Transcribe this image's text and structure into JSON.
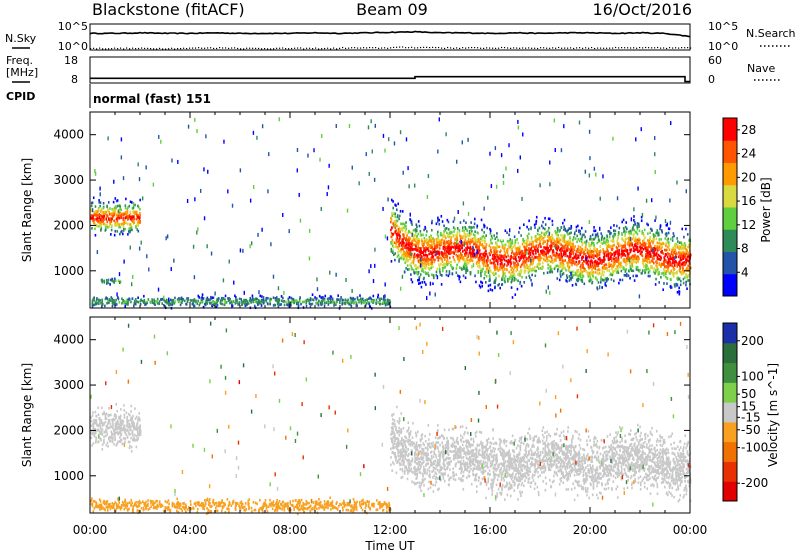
{
  "header": {
    "station": "Blackstone (fitACF)",
    "beam": "Beam 09",
    "date": "16/Oct/2016"
  },
  "noise_panel": {
    "left_label": "N.Sky",
    "right_label": "N.Search",
    "left_ticks": [
      "10^5",
      "10^0"
    ],
    "right_ticks": [
      "10^5",
      "10^0"
    ]
  },
  "freq_panel": {
    "left_label_1": "Freq.",
    "left_label_2": "[MHz]",
    "right_label": "Nave",
    "left_ticks": [
      "18",
      "8"
    ],
    "right_ticks": [
      "60",
      "0"
    ]
  },
  "cpid_panel": {
    "label": "CPID",
    "text": "normal (fast) 151"
  },
  "x_axis": {
    "label": "Time UT",
    "ticks": [
      "00:00",
      "04:00",
      "08:00",
      "12:00",
      "16:00",
      "20:00",
      "00:00"
    ]
  },
  "colors": {
    "power_scale": [
      "#0000ff",
      "#2255aa",
      "#2e8b57",
      "#5fcf3f",
      "#d9d940",
      "#ff9a00",
      "#ff5500",
      "#ff0000"
    ],
    "velocity_scale": [
      "#1c2fa8",
      "#2a6e3a",
      "#3e8f3e",
      "#7ed04a",
      "#c8c8c8",
      "#f8a020",
      "#f07000",
      "#e83000",
      "#e00000"
    ]
  },
  "chart_data": [
    {
      "type": "line",
      "title": "",
      "panel": "noise",
      "x_range": [
        0,
        24
      ],
      "series": [
        {
          "name": "N.Sky",
          "x": [
            0,
            1,
            2,
            3,
            4,
            5,
            6,
            7,
            8,
            9,
            10,
            11,
            12,
            13,
            14,
            15,
            16,
            17,
            18,
            19,
            20,
            21,
            22,
            23,
            24
          ],
          "values": [
            3.2,
            3.2,
            3.3,
            3.2,
            3.2,
            3.3,
            3.2,
            3.2,
            3.2,
            3.3,
            3.2,
            3.3,
            3.4,
            3.5,
            3.3,
            3.3,
            3.2,
            3.3,
            3.2,
            3.3,
            3.3,
            3.2,
            3.3,
            3.2,
            2.6
          ]
        },
        {
          "name": "N.Search",
          "x": [
            0,
            2,
            4,
            6,
            8,
            10,
            12,
            14,
            16,
            18,
            20,
            22,
            24
          ],
          "values": [
            0.4,
            0.4,
            0.5,
            0.4,
            0.4,
            0.5,
            0.6,
            0.5,
            0.5,
            0.5,
            0.5,
            0.5,
            0.5
          ]
        }
      ]
    },
    {
      "type": "line",
      "panel": "frequency",
      "x_range": [
        0,
        24
      ],
      "series": [
        {
          "name": "Freq.",
          "x": [
            0,
            13,
            13,
            23.8,
            23.8,
            24
          ],
          "values": [
            10.5,
            10.5,
            11.3,
            11.3,
            8.8,
            8.8
          ]
        }
      ]
    },
    {
      "type": "heatmap",
      "panel": "power",
      "xlabel": "Time UT",
      "ylabel": "Slant Range [km]",
      "x_range": [
        0,
        24
      ],
      "y_range": [
        180,
        4500
      ],
      "y_ticks": [
        1000,
        2000,
        3000,
        4000
      ],
      "colorbar_label": "Power [dB]",
      "colorbar_ticks": [
        4,
        8,
        12,
        16,
        20,
        24,
        28
      ],
      "colorbar_range": [
        0,
        30
      ],
      "bands": [
        {
          "x_start": 0.0,
          "x_end": 2.0,
          "y_start": 1800,
          "y_end": 2550,
          "peak_db": 26
        },
        {
          "x_start": 0.4,
          "x_end": 1.2,
          "y_start": 700,
          "y_end": 850,
          "peak_db": 10
        },
        {
          "x_start": 0.0,
          "x_end": 12.0,
          "y_start": 200,
          "y_end": 450,
          "peak_db": 10
        },
        {
          "x_start": 12.0,
          "x_end": 24.0,
          "y_start": 1100,
          "y_end": 2400,
          "peak_db": 28
        }
      ]
    },
    {
      "type": "heatmap",
      "panel": "velocity",
      "xlabel": "Time UT",
      "ylabel": "Slant Range [km]",
      "x_range": [
        0,
        24
      ],
      "y_range": [
        180,
        4500
      ],
      "y_ticks": [
        1000,
        2000,
        3000,
        4000
      ],
      "colorbar_label": "Velocity [m s^-1]",
      "colorbar_ticks": [
        200,
        100,
        50,
        15,
        -15,
        -50,
        -100,
        -200
      ],
      "colorbar_range": [
        -250,
        250
      ],
      "bands": [
        {
          "x_start": 0.0,
          "x_end": 2.0,
          "y_start": 1600,
          "y_end": 2500,
          "velocity": 0
        },
        {
          "x_start": 0.0,
          "x_end": 12.0,
          "y_start": 200,
          "y_end": 500,
          "velocity": -60
        },
        {
          "x_start": 12.0,
          "x_end": 24.0,
          "y_start": 1000,
          "y_end": 2300,
          "velocity": 0
        }
      ]
    }
  ]
}
